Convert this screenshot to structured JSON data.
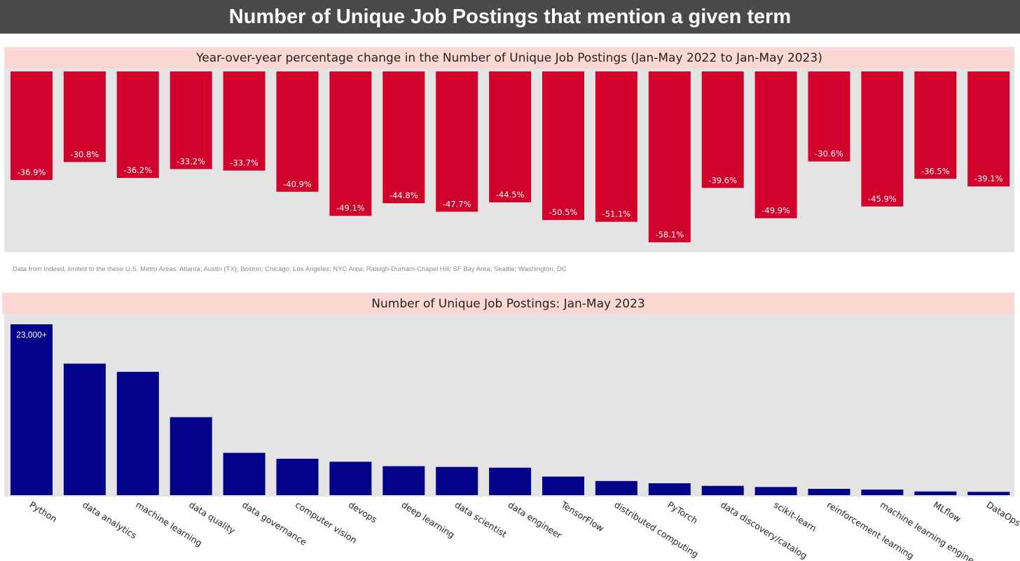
{
  "header": {
    "title": "Number of Unique Job Postings that mention a given term"
  },
  "note": "Data from Indeed, limited to the these U.S. Metro Areas: Atlanta; Austin (TX); Boston; Chicago; Los Angeles; NYC Area; Raleigh-Durham-Chapel Hill; SF Bay Area; Seattle; Washington, DC",
  "colors": {
    "yoy_bar": "#d0022c",
    "count_bar": "#03038a",
    "plot_bg": "#e5e4e4",
    "title_bg": "#fbd8d3",
    "header_bg": "#4a4a4a"
  },
  "chart_data": [
    {
      "type": "bar",
      "title": "Year-over-year percentage change in the Number of Unique Job Postings (Jan-May 2022 to Jan-May 2023)",
      "categories": [
        "Python",
        "data analytics",
        "machine learning",
        "data quality",
        "data governance",
        "computer vision",
        "devops",
        "deep learning",
        "data scientist",
        "data engineer",
        "TensorFlow",
        "distributed computing",
        "PyTorch",
        "data discovery/catalog",
        "scikit-learn",
        "reinforcement learning",
        "machine learning engineer",
        "MLflow",
        "DataOps"
      ],
      "values": [
        -36.9,
        -30.8,
        -36.2,
        -33.2,
        -33.7,
        -40.9,
        -49.1,
        -44.8,
        -47.7,
        -44.5,
        -50.5,
        -51.1,
        -58.1,
        -39.6,
        -49.9,
        -30.6,
        -45.9,
        -36.5,
        -39.1
      ],
      "data_labels": [
        "-36.9%",
        "-30.8%",
        "-36.2%",
        "-33.2%",
        "-33.7%",
        "-40.9%",
        "-49.1%",
        "-44.8%",
        "-47.7%",
        "-44.5%",
        "-50.5%",
        "-51.1%",
        "-58.1%",
        "-39.6%",
        "-49.9%",
        "-30.6%",
        "-45.9%",
        "-36.5%",
        "-39.1%"
      ],
      "ylim": [
        -61,
        0
      ],
      "grid": false
    },
    {
      "type": "bar",
      "title": "Number of Unique Job Postings: Jan-May 2023",
      "categories": [
        "Python",
        "data analytics",
        "machine learning",
        "data quality",
        "data governance",
        "computer vision",
        "devops",
        "deep learning",
        "data scientist",
        "data engineer",
        "TensorFlow",
        "distributed computing",
        "PyTorch",
        "data discovery/catalog",
        "scikit-learn",
        "reinforcement learning",
        "machine learning engineer",
        "MLflow",
        "DataOps"
      ],
      "values": [
        23000,
        17700,
        16600,
        10500,
        5700,
        4900,
        4500,
        3900,
        3800,
        3700,
        2500,
        1900,
        1600,
        1250,
        1100,
        850,
        750,
        500,
        450
      ],
      "data_labels": [
        "23,000+",
        "",
        "",
        "",
        "",
        "",
        "",
        "",
        "",
        "",
        "",
        "",
        "",
        "",
        "",
        "",
        "",
        "",
        ""
      ],
      "ylim": [
        0,
        23000
      ],
      "grid": false
    }
  ]
}
